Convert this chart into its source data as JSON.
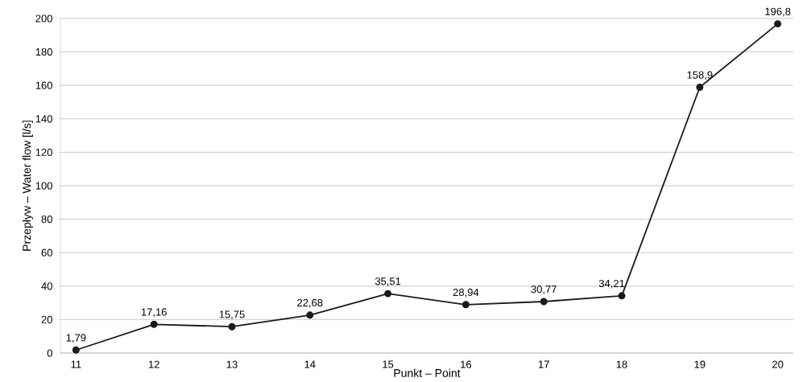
{
  "chart_data": {
    "type": "line",
    "xlabel": "Punkt – Point",
    "ylabel": "Przepływ – Water flow  [l/s]",
    "categories": [
      "11",
      "12",
      "13",
      "14",
      "15",
      "16",
      "17",
      "18",
      "19",
      "20"
    ],
    "values": [
      1.79,
      17.16,
      15.75,
      22.68,
      35.51,
      28.94,
      30.77,
      34.21,
      158.9,
      196.8
    ],
    "value_labels": [
      "1,79",
      "17,16",
      "15,75",
      "22,68",
      "35,51",
      "28,94",
      "30,77",
      "34,21",
      "158,9",
      "196,8"
    ],
    "color": "#1a1a1a",
    "ylim": [
      0,
      200
    ],
    "yticks": [
      0,
      20,
      40,
      60,
      80,
      100,
      120,
      140,
      160,
      180,
      200
    ],
    "grid": "y",
    "marker": "circle",
    "line_style": "solid"
  }
}
